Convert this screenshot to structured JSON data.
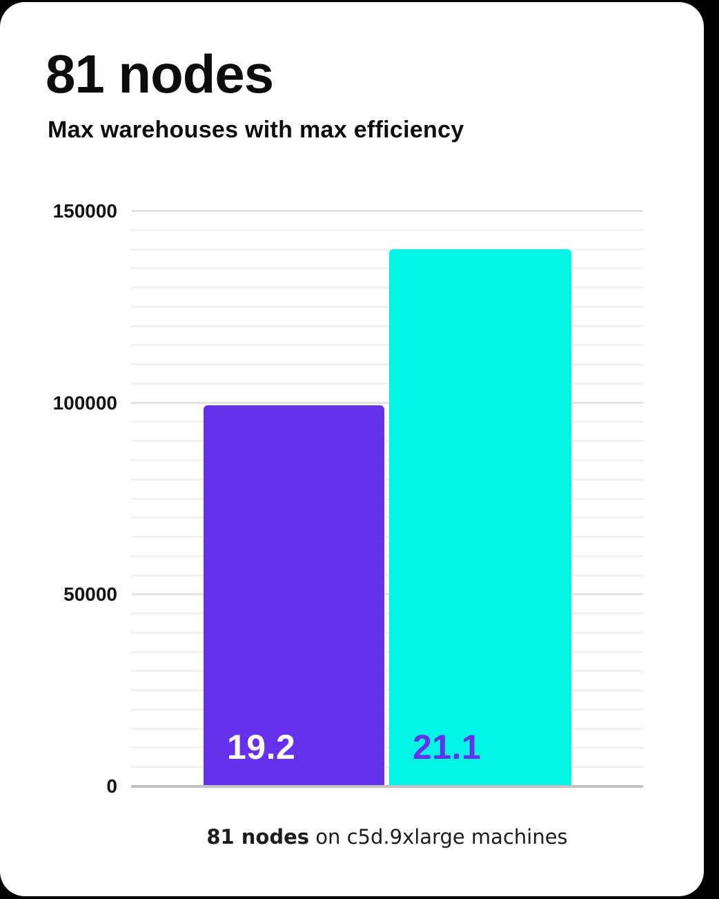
{
  "page": {
    "background": "#000000",
    "card_background": "#FFFFFF"
  },
  "header": {
    "title": "81 nodes",
    "subtitle": "Max warehouses with max efficiency"
  },
  "footer": {
    "caption_bold": "81 nodes",
    "caption_rest": " on c5d.9xlarge machines"
  },
  "chart_data": {
    "type": "bar",
    "title": "81 nodes",
    "subtitle": "Max warehouses with max efficiency",
    "caption_bold": "81 nodes",
    "caption_rest": " on c5d.9xlarge machines",
    "xlabel": "",
    "ylabel": "",
    "ylim": [
      0,
      150000
    ],
    "yticks": [
      {
        "value": 150000,
        "label": "150000"
      },
      {
        "value": 100000,
        "label": "100000"
      },
      {
        "value": 50000,
        "label": "50000"
      },
      {
        "value": 0,
        "label": "0"
      }
    ],
    "grid": true,
    "minor_gridline_step": 5000,
    "major_gridline_step": 50000,
    "legend": false,
    "bars": [
      {
        "name": "left-bar",
        "value": 99400,
        "label": "19.2",
        "color": "#6432EF",
        "label_color": "#FFFFFF"
      },
      {
        "name": "right-bar",
        "value": 140100,
        "label": "21.1",
        "color": "#00F5E6",
        "label_color": "#6432EF"
      }
    ],
    "colors": {
      "minor_gridline": "#F2F2F2",
      "major_gridline": "#E4E4E4",
      "axis_line": "#C2C2C2"
    }
  }
}
